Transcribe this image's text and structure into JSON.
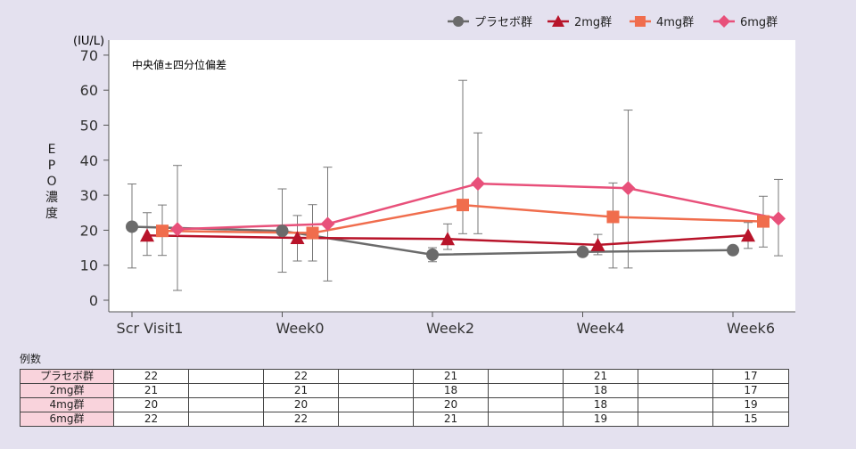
{
  "chart_data": {
    "type": "line",
    "title": "",
    "annotation": "中央値±四分位偏差",
    "ylabel": "EPO濃度",
    "yunit": "(IU/L)",
    "ylim": [
      0,
      70
    ],
    "yticks": [
      0,
      10,
      20,
      30,
      40,
      50,
      60,
      70
    ],
    "categories": [
      "Scr Visit1",
      "Week0",
      "Week2",
      "Week4",
      "Week6"
    ],
    "legend_position": "top-right",
    "grid": false,
    "series": [
      {
        "name": "プラセボ群",
        "marker": "circle",
        "color": "#6b6b6b",
        "values": [
          21,
          19.8,
          13,
          13.8,
          14.3
        ],
        "lower": [
          9.2,
          8,
          11,
          12.8,
          13.3
        ],
        "upper": [
          33.2,
          31.8,
          15,
          14.8,
          15.3
        ]
      },
      {
        "name": "2mg群",
        "marker": "triangle",
        "color": "#b8142a",
        "values": [
          18.5,
          17.8,
          17.5,
          15.8,
          18.5
        ],
        "lower": [
          12.8,
          11.2,
          14.5,
          13,
          14.8
        ],
        "upper": [
          25,
          24.2,
          21.8,
          18.8,
          22.2
        ]
      },
      {
        "name": "4mg群",
        "marker": "square",
        "color": "#f06d4d",
        "values": [
          19.8,
          19.2,
          27.2,
          23.8,
          22.5
        ],
        "lower": [
          12.8,
          11.2,
          19,
          9.2,
          15.2
        ],
        "upper": [
          27.2,
          27.3,
          62.8,
          33.5,
          29.7
        ]
      },
      {
        "name": "6mg群",
        "marker": "diamond",
        "color": "#e8507a",
        "values": [
          20.3,
          21.8,
          33.3,
          32,
          23.3
        ],
        "lower": [
          2.8,
          5.5,
          19,
          9.2,
          12.7
        ],
        "upper": [
          38.5,
          38,
          47.8,
          54.3,
          34.5
        ]
      }
    ]
  },
  "counts_table": {
    "label": "例数",
    "rows": [
      {
        "name": "プラセボ群",
        "values": [
          "22",
          "22",
          "21",
          "21",
          "17"
        ]
      },
      {
        "name": "2mg群",
        "values": [
          "21",
          "21",
          "18",
          "18",
          "17"
        ]
      },
      {
        "name": "4mg群",
        "values": [
          "20",
          "20",
          "20",
          "18",
          "19"
        ]
      },
      {
        "name": "6mg群",
        "values": [
          "22",
          "22",
          "21",
          "19",
          "15"
        ]
      }
    ]
  }
}
